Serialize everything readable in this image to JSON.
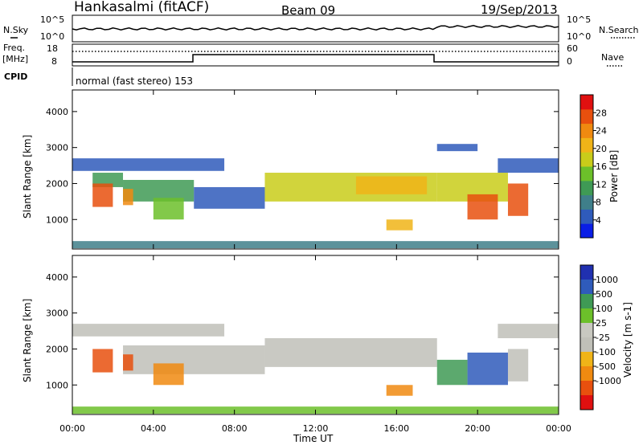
{
  "header": {
    "station": "Hankasalmi (fitACF)",
    "beam": "Beam 09",
    "date": "19/Sep/2013"
  },
  "noise_panel": {
    "left_label": "N.Sky",
    "right_label": "N.Search",
    "left_ticks": [
      "10^5",
      "10^0"
    ],
    "right_ticks": [
      "10^5",
      "10^0"
    ]
  },
  "freq_panel": {
    "left_label_1": "Freq.",
    "left_label_2": "[MHz]",
    "right_label": "Nave",
    "left_ticks": [
      "18",
      "8"
    ],
    "right_ticks": [
      "60",
      "0"
    ]
  },
  "cpid": {
    "label": "CPID",
    "text": "normal (fast stereo) 153"
  },
  "x_axis": {
    "label": "Time UT",
    "ticks": [
      "00:00",
      "04:00",
      "08:00",
      "12:00",
      "16:00",
      "20:00",
      "00:00"
    ]
  },
  "y_axis": {
    "label": "Slant Range [km]",
    "ticks": [
      "4000",
      "3000",
      "2000",
      "1000"
    ]
  },
  "colors": {
    "power_scale": [
      "#0a1ee6",
      "#2f5bbb",
      "#3f7f8a",
      "#3f9a55",
      "#6cc02a",
      "#c9cc1a",
      "#f0b418",
      "#f08a10",
      "#e8500e",
      "#e01010"
    ],
    "velocity_scale": [
      "#e01010",
      "#e8500e",
      "#f08a10",
      "#f0b418",
      "#c0c0b8",
      "#c8c8c0",
      "#6cc02a",
      "#3f9a55",
      "#2f5bbb",
      "#2030b0"
    ]
  },
  "chart_data": [
    {
      "type": "heatmap",
      "title": "",
      "xlabel": "Time UT",
      "ylabel": "Slant Range [km]",
      "xlim_hours": [
        0,
        24
      ],
      "ylim_km": [
        180,
        4600
      ],
      "colorbar": {
        "label": "Power [dB]",
        "ticks": [
          "28",
          "24",
          "20",
          "16",
          "12",
          "8",
          "4"
        ],
        "range": [
          0,
          32
        ]
      },
      "regions": [
        {
          "t0": 0.0,
          "t1": 7.5,
          "r0": 2350,
          "r1": 2700,
          "level": 4
        },
        {
          "t0": 1.0,
          "t1": 2.5,
          "r0": 1900,
          "r1": 2300,
          "level": 10
        },
        {
          "t0": 2.5,
          "t1": 6.0,
          "r0": 1500,
          "r1": 2100,
          "level": 12
        },
        {
          "t0": 6.0,
          "t1": 9.5,
          "r0": 1300,
          "r1": 1900,
          "level": 6
        },
        {
          "t0": 9.5,
          "t1": 18.0,
          "r0": 1500,
          "r1": 2300,
          "level": 16
        },
        {
          "t0": 14.0,
          "t1": 17.5,
          "r0": 1700,
          "r1": 2200,
          "level": 22
        },
        {
          "t0": 1.0,
          "t1": 2.0,
          "r0": 1350,
          "r1": 2000,
          "level": 26
        },
        {
          "t0": 2.5,
          "t1": 3.0,
          "r0": 1400,
          "r1": 1850,
          "level": 24
        },
        {
          "t0": 4.0,
          "t1": 5.5,
          "r0": 1000,
          "r1": 1600,
          "level": 14
        },
        {
          "t0": 15.5,
          "t1": 16.8,
          "r0": 700,
          "r1": 1000,
          "level": 22
        },
        {
          "t0": 18.0,
          "t1": 21.5,
          "r0": 1500,
          "r1": 2300,
          "level": 18
        },
        {
          "t0": 19.5,
          "t1": 21.0,
          "r0": 1000,
          "r1": 1700,
          "level": 28
        },
        {
          "t0": 21.5,
          "t1": 22.5,
          "r0": 1100,
          "r1": 2000,
          "level": 28
        },
        {
          "t0": 21.0,
          "t1": 24.0,
          "r0": 2300,
          "r1": 2700,
          "level": 5
        },
        {
          "t0": 0.0,
          "t1": 24.0,
          "r0": 200,
          "r1": 400,
          "level": 8
        },
        {
          "t0": 18.0,
          "t1": 20.0,
          "r0": 2900,
          "r1": 3100,
          "level": 4
        }
      ]
    },
    {
      "type": "heatmap",
      "title": "",
      "xlabel": "Time UT",
      "ylabel": "Slant Range [km]",
      "xlim_hours": [
        0,
        24
      ],
      "ylim_km": [
        180,
        4600
      ],
      "colorbar": {
        "label": "Velocity [m s-1]",
        "ticks": [
          "1000",
          "500",
          "100",
          "25",
          "-25",
          "-100",
          "-500",
          "-1000"
        ],
        "range": [
          -1000,
          1000
        ]
      },
      "regions": [
        {
          "t0": 0.0,
          "t1": 7.5,
          "r0": 2350,
          "r1": 2700,
          "velocity": 0
        },
        {
          "t0": 2.5,
          "t1": 9.5,
          "r0": 1300,
          "r1": 2100,
          "velocity": 0
        },
        {
          "t0": 9.5,
          "t1": 18.0,
          "r0": 1500,
          "r1": 2300,
          "velocity": 0
        },
        {
          "t0": 1.0,
          "t1": 2.0,
          "r0": 1350,
          "r1": 2000,
          "velocity": -300
        },
        {
          "t0": 2.5,
          "t1": 3.0,
          "r0": 1400,
          "r1": 1850,
          "velocity": -300
        },
        {
          "t0": 4.0,
          "t1": 5.5,
          "r0": 1000,
          "r1": 1600,
          "velocity": -150
        },
        {
          "t0": 15.5,
          "t1": 16.8,
          "r0": 700,
          "r1": 1000,
          "velocity": -200
        },
        {
          "t0": 19.5,
          "t1": 21.5,
          "r0": 1000,
          "r1": 1900,
          "velocity": 300
        },
        {
          "t0": 18.0,
          "t1": 19.5,
          "r0": 1000,
          "r1": 1700,
          "velocity": 150
        },
        {
          "t0": 21.5,
          "t1": 22.5,
          "r0": 1100,
          "r1": 2000,
          "velocity": 0
        },
        {
          "t0": 21.0,
          "t1": 24.0,
          "r0": 2300,
          "r1": 2700,
          "velocity": 0
        },
        {
          "t0": 0.0,
          "t1": 24.0,
          "r0": 200,
          "r1": 400,
          "velocity": 50
        }
      ]
    }
  ]
}
